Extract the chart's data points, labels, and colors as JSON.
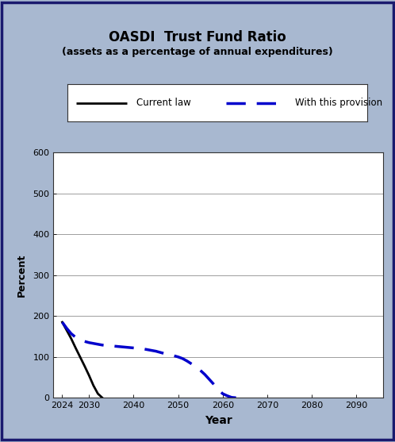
{
  "title_line1": "OASDI  Trust Fund Ratio",
  "title_line2": "(assets as a percentage of annual expenditures)",
  "xlabel": "Year",
  "ylabel": "Percent",
  "ylim": [
    0,
    600
  ],
  "xlim": [
    2022,
    2096
  ],
  "yticks": [
    0,
    100,
    200,
    300,
    400,
    500,
    600
  ],
  "xticks": [
    2024,
    2030,
    2040,
    2050,
    2060,
    2070,
    2080,
    2090
  ],
  "background_color": "#a8b8d0",
  "plot_bg_color": "#ffffff",
  "current_law_x": [
    2024,
    2025,
    2026,
    2027,
    2028,
    2029,
    2030,
    2031,
    2032,
    2033
  ],
  "current_law_y": [
    185,
    165,
    145,
    122,
    100,
    78,
    55,
    30,
    10,
    0
  ],
  "provision_x": [
    2024,
    2025,
    2026,
    2027,
    2028,
    2029,
    2030,
    2031,
    2032,
    2033,
    2034,
    2035,
    2036,
    2037,
    2038,
    2039,
    2040,
    2041,
    2042,
    2043,
    2044,
    2045,
    2046,
    2047,
    2048,
    2049,
    2050,
    2051,
    2052,
    2053,
    2054,
    2055,
    2056,
    2057,
    2058,
    2059,
    2060,
    2061,
    2062,
    2063
  ],
  "provision_y": [
    185,
    170,
    157,
    148,
    142,
    138,
    135,
    133,
    131,
    129,
    128,
    127,
    126,
    125,
    124,
    123,
    122,
    121,
    120,
    118,
    116,
    114,
    111,
    108,
    105,
    103,
    100,
    96,
    90,
    83,
    76,
    67,
    57,
    45,
    33,
    20,
    10,
    5,
    1,
    0
  ],
  "current_law_color": "#000000",
  "provision_color": "#0000cc",
  "legend_label_current": "Current law",
  "legend_label_provision": "With this provision",
  "outer_bg_color": "#a8b8d0",
  "border_color": "#1a1a6e"
}
